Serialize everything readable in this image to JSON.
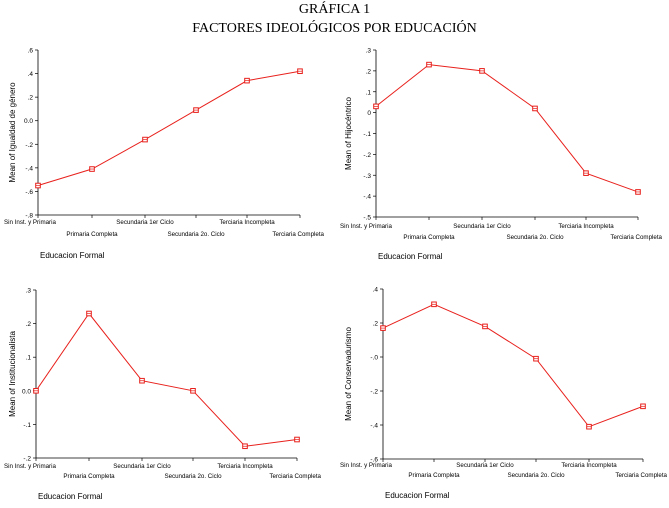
{
  "figure": {
    "title": "GRÁFICA 1",
    "subtitle": "FACTORES IDEOLÓGICOS POR EDUCACIÓN",
    "line_color": "#e8201c"
  },
  "chart_data": [
    {
      "type": "line",
      "categories": [
        "Sin Inst. y Primaria",
        "Primaria Completa",
        "Secundaria 1er Ciclo",
        "Secundaria 2o. Ciclo",
        "Terciaria Incompleta",
        "Terciaria Completa"
      ],
      "values": [
        -0.55,
        -0.41,
        -0.16,
        0.09,
        0.34,
        0.42
      ],
      "xlabel": "Educacion Formal",
      "ylabel": "Mean of Igualdad de género",
      "ylim": [
        -0.8,
        0.6
      ],
      "yticks": [
        -0.8,
        -0.6,
        -0.4,
        -0.2,
        0.0,
        0.2,
        0.4,
        0.6
      ],
      "ytick_labels": [
        "-.8",
        "-.6",
        "-.4",
        "-.2",
        "0.0",
        ".2",
        ".4",
        ".6"
      ],
      "grid": false
    },
    {
      "type": "line",
      "categories": [
        "Sin Inst. y Primaria",
        "Primaria Completa",
        "Secundaria 1er Ciclo",
        "Secundaria 2o. Ciclo",
        "Terciaria Incompleta",
        "Terciaria Completa"
      ],
      "values": [
        0.03,
        0.23,
        0.2,
        0.02,
        -0.29,
        -0.38
      ],
      "xlabel": "Educacion Formal",
      "ylabel": "Mean of Hijocéntrico",
      "ylim": [
        -0.5,
        0.3
      ],
      "yticks": [
        -0.5,
        -0.4,
        -0.3,
        -0.2,
        -0.1,
        0.0,
        0.1,
        0.2,
        0.3
      ],
      "ytick_labels": [
        "-.5",
        "-.4",
        "-.3",
        "-.2",
        "-.1",
        "0",
        ".1",
        ".2",
        ".3"
      ],
      "grid": false
    },
    {
      "type": "line",
      "categories": [
        "Sin Inst. y Primaria",
        "Primaria Completa",
        "Secundaria 1er Ciclo",
        "Secundaria 2o. Ciclo",
        "Terciaria Incompleta",
        "Terciaria Completa"
      ],
      "values": [
        0.0,
        0.23,
        0.03,
        0.0,
        -0.165,
        -0.145
      ],
      "xlabel": "Educacion Formal",
      "ylabel": "Mean of Institucionalista",
      "ylim": [
        -0.2,
        0.3
      ],
      "yticks": [
        -0.2,
        -0.1,
        0.0,
        0.1,
        0.2,
        0.3
      ],
      "ytick_labels": [
        "-.2",
        "-.1",
        "0.0",
        ".1",
        ".2",
        ".3"
      ],
      "grid": false
    },
    {
      "type": "line",
      "categories": [
        "Sin Inst. y Primaria",
        "Primaria Completa",
        "Secundaria 1er Ciclo",
        "Secundaria 2o. Ciclo",
        "Terciaria Incompleta",
        "Terciaria Completa"
      ],
      "values": [
        0.17,
        0.31,
        0.18,
        -0.01,
        -0.41,
        -0.29
      ],
      "xlabel": "Educacion Formal",
      "ylabel": "Mean of Conservadurismo",
      "ylim": [
        -0.6,
        0.4
      ],
      "yticks": [
        -0.6,
        -0.4,
        -0.2,
        0.0,
        0.2,
        0.4
      ],
      "ytick_labels": [
        "-.6",
        "-.4",
        "-.2",
        "-.0",
        ".2",
        ".4"
      ],
      "grid": false
    }
  ]
}
